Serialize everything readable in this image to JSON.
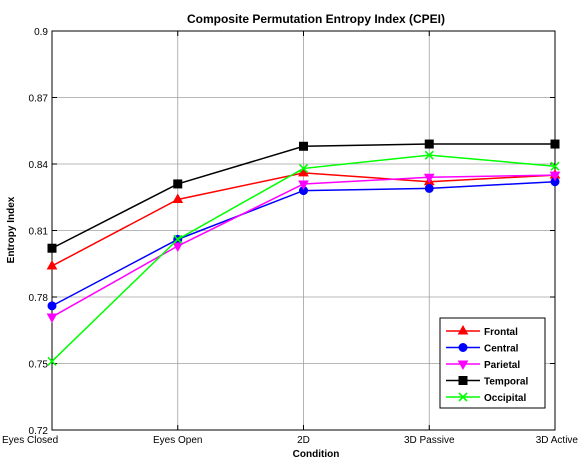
{
  "chart_data": {
    "type": "line",
    "title": "Composite Permutation Entropy Index (CPEI)",
    "xlabel": "Condition",
    "ylabel": "Entropy Index",
    "categories": [
      "Eyes Closed",
      "Eyes Open",
      "2D",
      "3D Passive",
      "3D Active"
    ],
    "ylim": [
      0.72,
      0.9
    ],
    "yticks": [
      "0.72",
      "0.75",
      "0.78",
      "0.81",
      "0.84",
      "0.87",
      "0.9"
    ],
    "grid": true,
    "legend_position": "bottom-right",
    "series": [
      {
        "name": "Frontal",
        "color": "#ff0000",
        "marker": "triangle-up",
        "values": [
          0.794,
          0.824,
          0.836,
          0.832,
          0.835
        ]
      },
      {
        "name": "Central",
        "color": "#0000ff",
        "marker": "circle",
        "values": [
          0.776,
          0.806,
          0.828,
          0.829,
          0.832
        ]
      },
      {
        "name": "Parietal",
        "color": "#ff00ff",
        "marker": "triangle-down",
        "values": [
          0.771,
          0.803,
          0.831,
          0.834,
          0.835
        ]
      },
      {
        "name": "Temporal",
        "color": "#000000",
        "marker": "square",
        "values": [
          0.802,
          0.831,
          0.848,
          0.849,
          0.849
        ]
      },
      {
        "name": "Occipital",
        "color": "#00ff00",
        "marker": "x",
        "values": [
          0.751,
          0.806,
          0.838,
          0.844,
          0.839
        ]
      }
    ]
  }
}
